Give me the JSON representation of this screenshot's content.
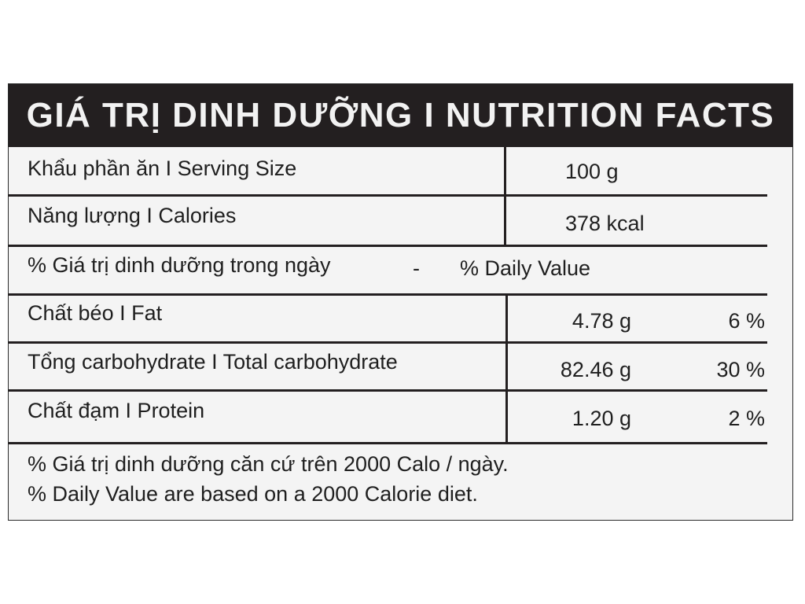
{
  "header": {
    "title": "GIÁ TRỊ DINH DƯỠNG I NUTRITION FACTS"
  },
  "serving": {
    "label": "Khẩu phần ăn I Serving Size",
    "value": "100 g"
  },
  "calories": {
    "label": "Năng lượng I Calories",
    "value": "378 kcal"
  },
  "daily_value_header": {
    "vi": "% Giá trị dinh dưỡng trong ngày",
    "dash": "-",
    "en": "% Daily Value"
  },
  "nutrients": [
    {
      "label": "Chất béo I Fat",
      "amount": "4.78 g",
      "percent": "6 %"
    },
    {
      "label": "Tổng carbohydrate I Total carbohydrate",
      "amount": "82.46 g",
      "percent": "30 %"
    },
    {
      "label": "Chất đạm I Protein",
      "amount": "1.20 g",
      "percent": "2 %"
    }
  ],
  "footnote": {
    "vi": "% Giá trị dinh dưỡng căn cứ trên 2000 Calo / ngày.",
    "en": "% Daily Value are based on a 2000 Calorie diet."
  },
  "colors": {
    "ink": "#231f20",
    "panel": "#f4f4f4",
    "header_text": "#f2f2f2"
  }
}
